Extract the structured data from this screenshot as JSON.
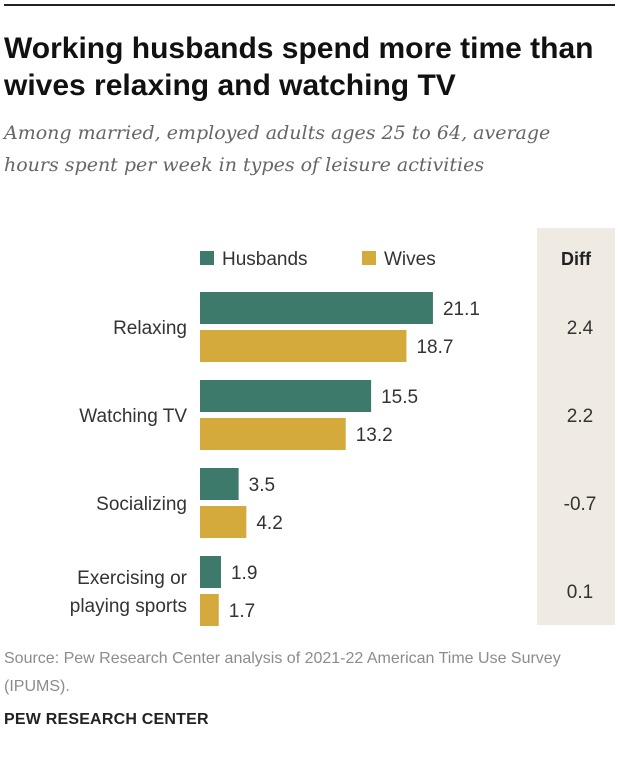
{
  "title": "Working husbands spend more time than wives relaxing and watching TV",
  "subtitle": "Among married, employed adults ages 25 to 64, average hours spent per week in types of leisure activities",
  "diff_header": "Diff",
  "source": "Source: Pew Research Center analysis of 2021-22 American Time Use Survey (IPUMS).",
  "brand": "PEW RESEARCH CENTER",
  "colors": {
    "husbands": "#3d7a6c",
    "wives": "#d5aa3c",
    "diff_panel": "#efebe3"
  },
  "chart_data": {
    "type": "bar",
    "orientation": "horizontal",
    "categories": [
      [
        "Relaxing"
      ],
      [
        "Watching TV"
      ],
      [
        "Socializing"
      ],
      [
        "Exercising or",
        "playing sports"
      ]
    ],
    "series": [
      {
        "name": "Husbands",
        "values": [
          21.1,
          15.5,
          3.5,
          1.9
        ]
      },
      {
        "name": "Wives",
        "values": [
          18.7,
          13.2,
          4.2,
          1.7
        ]
      }
    ],
    "diff": [
      "2.4",
      "2.2",
      "-0.7",
      "0.1"
    ],
    "value_labels": [
      [
        "21.1",
        "18.7"
      ],
      [
        "15.5",
        "13.2"
      ],
      [
        "3.5",
        "4.2"
      ],
      [
        "1.9",
        "1.7"
      ]
    ],
    "legend_placement": "top",
    "grid": false
  }
}
